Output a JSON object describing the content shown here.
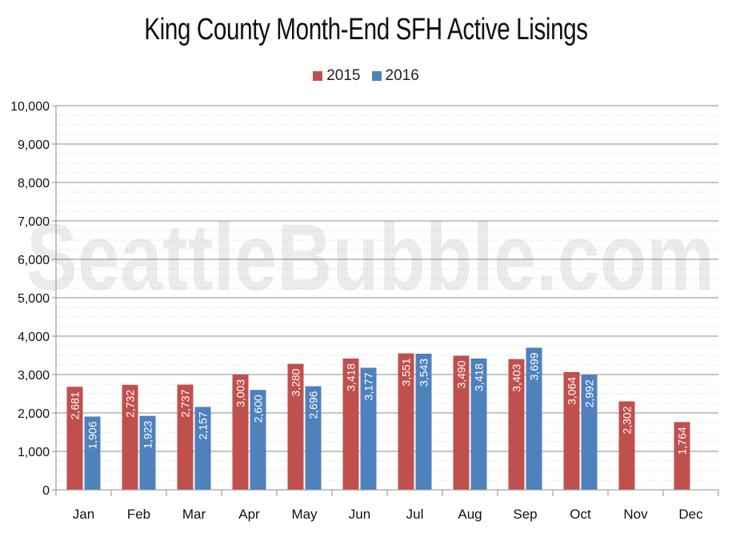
{
  "watermark": "SeattleBubble.com",
  "chart_data": {
    "type": "bar",
    "title": "King County Month-End SFH Active Lisings",
    "categories": [
      "Jan",
      "Feb",
      "Mar",
      "Apr",
      "May",
      "Jun",
      "Jul",
      "Aug",
      "Sep",
      "Oct",
      "Nov",
      "Dec"
    ],
    "series": [
      {
        "name": "2015",
        "color": "#c0504d",
        "values": [
          2681,
          2732,
          2737,
          3003,
          3280,
          3418,
          3551,
          3490,
          3403,
          3064,
          2302,
          1764
        ],
        "labels": [
          "2,681",
          "2,732",
          "2,737",
          "3,003",
          "3,280",
          "3,418",
          "3,551",
          "3,490",
          "3,403",
          "3,064",
          "2,302",
          "1,764"
        ]
      },
      {
        "name": "2016",
        "color": "#4f81bd",
        "values": [
          1906,
          1923,
          2157,
          2600,
          2696,
          3177,
          3543,
          3418,
          3699,
          2992,
          null,
          null
        ],
        "labels": [
          "1,906",
          "1,923",
          "2,157",
          "2,600",
          "2,696",
          "3,177",
          "3,543",
          "3,418",
          "3,699",
          "2,992",
          "",
          ""
        ]
      }
    ],
    "ylim": [
      0,
      10000
    ],
    "yticks": [
      "0",
      "1,000",
      "2,000",
      "3,000",
      "4,000",
      "5,000",
      "6,000",
      "7,000",
      "8,000",
      "9,000",
      "10,000"
    ],
    "xlabel": "",
    "ylabel": "",
    "grid": true,
    "legend_position": "top"
  }
}
